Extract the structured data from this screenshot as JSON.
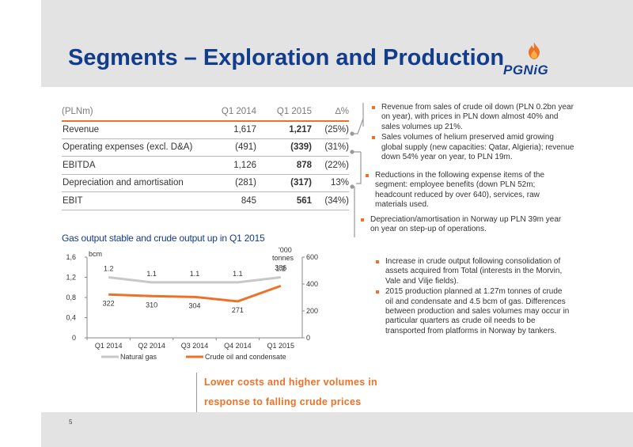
{
  "header": {
    "title": "Segments – Exploration and Production",
    "logo_text": "PGNiG"
  },
  "table": {
    "columns": [
      "(PLNm)",
      "Q1 2014",
      "Q1 2015",
      "∆%"
    ],
    "rows": [
      {
        "label": "Revenue",
        "q1_2014": "1,617",
        "q1_2015": "1,217",
        "change": "(25%)"
      },
      {
        "label": "Operating expenses (excl. D&A)",
        "q1_2014": "(491)",
        "q1_2015": "(339)",
        "change": "(31%)"
      },
      {
        "label": "EBITDA",
        "q1_2014": "1,126",
        "q1_2015": "878",
        "change": "(22%)"
      },
      {
        "label": "Depreciation and amortisation",
        "q1_2014": "(281)",
        "q1_2015": "(317)",
        "change": "13%"
      },
      {
        "label": "EBIT",
        "q1_2014": "845",
        "q1_2015": "561",
        "change": "(34%)"
      }
    ]
  },
  "notes": {
    "revenue": [
      "Revenue from sales of crude oil down (PLN 0.2bn year on year), with prices in PLN down almost 40% and sales volumes up 21%.",
      "Sales volumes of helium preserved amid growing global supply (new capacities: Qatar, Algieria); revenue down 54% year on year, to PLN 19m."
    ],
    "opex": [
      "Reductions in the following expense items of the segment: employee benefits (down PLN 52m; headcount reduced by over 640), services, raw materials used."
    ],
    "depreciation": [
      "Depreciation/amortisation in Norway up PLN 39m year on year on step-up of operations."
    ],
    "output": [
      "Increase in crude output following consolidation of assets acquired from Total (interests in the Morvin, Vale and Vilje fields).",
      "2015 production planned at 1.27m tonnes of crude oil and condensate and 4.5 bcm of gas. Differences between production and sales volumes may occur in particular quarters as crude oil needs to be transported from platforms in Norway by tankers."
    ]
  },
  "chart_title": "Gas output stable and crude output up in Q1 2015",
  "chart_data": {
    "type": "line",
    "categories": [
      "Q1 2014",
      "Q2 2014",
      "Q3 2014",
      "Q4 2014",
      "Q1 2015"
    ],
    "series": [
      {
        "name": "Natural gas",
        "axis": "left",
        "values": [
          1.2,
          1.1,
          1.1,
          1.1,
          1.2
        ],
        "labels": [
          "1.2",
          "1.1",
          "1.1",
          "1.1",
          "1.2"
        ],
        "color": "#c8c8c8"
      },
      {
        "name": "Crude oil and condensate",
        "axis": "right",
        "values": [
          322,
          310,
          304,
          271,
          386
        ],
        "labels": [
          "322",
          "310",
          "304",
          "271",
          "386"
        ],
        "color": "#ee7127"
      }
    ],
    "y_left": {
      "label": "bcm",
      "min": 0,
      "max": 1.6,
      "ticks": [
        "0",
        "0,4",
        "0,8",
        "1,2",
        "1,6"
      ],
      "tick_values": [
        0,
        0.4,
        0.8,
        1.2,
        1.6
      ]
    },
    "y_right": {
      "label": "'000 tonnes",
      "label_lines": [
        "'000",
        "tonnes"
      ],
      "min": 0,
      "max": 600,
      "ticks": [
        "0",
        "200",
        "400",
        "600"
      ],
      "tick_values": [
        0,
        200,
        400,
        600
      ]
    },
    "legend": "bottom"
  },
  "callout": {
    "line1": "Lower costs and higher volumes in",
    "line2": "response to falling crude prices"
  },
  "footer": {
    "page_number": "5"
  },
  "colors": {
    "accent": "#ee7127",
    "title_blue": "#123c8c",
    "band_gray": "#e3e3e3",
    "gas_line": "#c8c8c8"
  }
}
